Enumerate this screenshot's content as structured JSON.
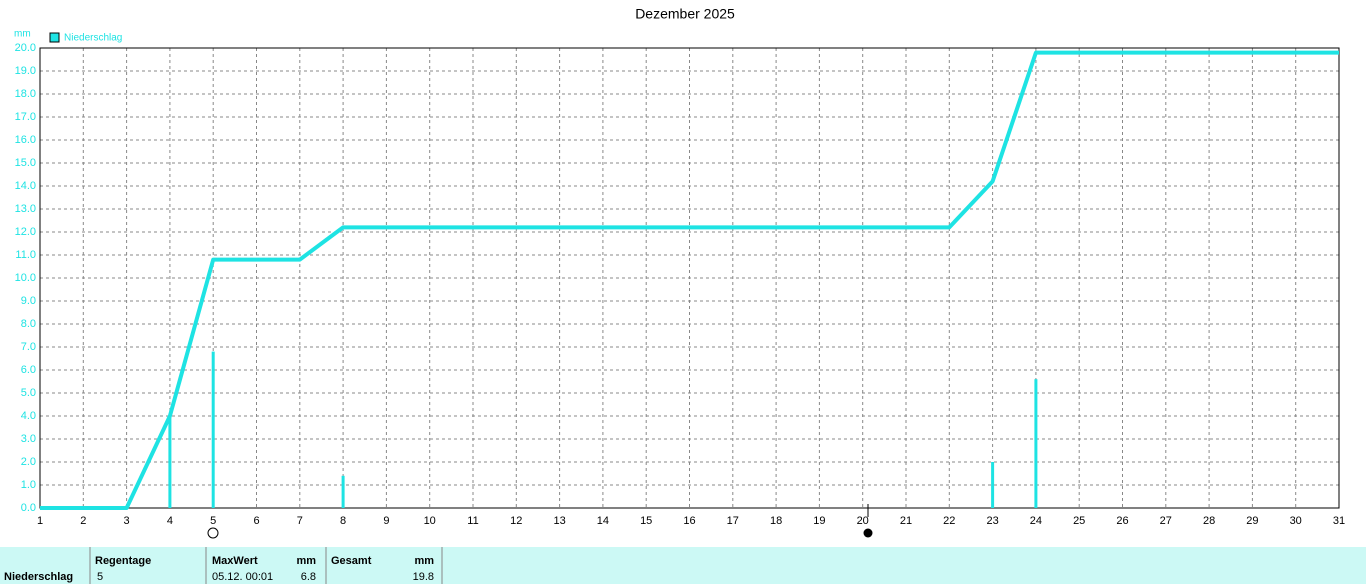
{
  "chart_data": {
    "type": "line",
    "title": "Dezember 2025",
    "y_label": "mm",
    "x": [
      1,
      3,
      4,
      5,
      7,
      8,
      22,
      23,
      24,
      31
    ],
    "series": [
      {
        "name": "Niederschlag",
        "color": "#1ee3e3",
        "values": [
          0,
          0,
          4.0,
          10.8,
          10.8,
          12.2,
          12.2,
          14.2,
          19.8,
          19.8
        ]
      }
    ],
    "bars": {
      "x": [
        4,
        5,
        8,
        23,
        24
      ],
      "values": [
        4.0,
        6.8,
        1.4,
        2.0,
        5.6
      ]
    },
    "xlim": [
      1,
      31
    ],
    "xticks": [
      1,
      2,
      3,
      4,
      5,
      6,
      7,
      8,
      9,
      10,
      11,
      12,
      13,
      14,
      15,
      16,
      17,
      18,
      19,
      20,
      21,
      22,
      23,
      24,
      25,
      26,
      27,
      28,
      29,
      30,
      31
    ],
    "ylim": [
      0,
      20
    ],
    "yticks": [
      {
        "value": 0,
        "label": "0.0"
      },
      {
        "value": 1,
        "label": "1.0"
      },
      {
        "value": 2,
        "label": "2.0"
      },
      {
        "value": 3,
        "label": "3.0"
      },
      {
        "value": 4,
        "label": "4.0"
      },
      {
        "value": 5,
        "label": "5.0"
      },
      {
        "value": 6,
        "label": "6.0"
      },
      {
        "value": 7,
        "label": "7.0"
      },
      {
        "value": 8,
        "label": "8.0"
      },
      {
        "value": 9,
        "label": "9.0"
      },
      {
        "value": 10,
        "label": "10.0"
      },
      {
        "value": 11,
        "label": "11.0"
      },
      {
        "value": 12,
        "label": "12.0"
      },
      {
        "value": 13,
        "label": "13.0"
      },
      {
        "value": 14,
        "label": "14.0"
      },
      {
        "value": 15,
        "label": "15.0"
      },
      {
        "value": 16,
        "label": "16.0"
      },
      {
        "value": 17,
        "label": "17.0"
      },
      {
        "value": 18,
        "label": "18.0"
      },
      {
        "value": 19,
        "label": "19.0"
      },
      {
        "value": 20,
        "label": "20.0"
      }
    ],
    "grid": true
  },
  "table": {
    "row_label": "Niederschlag",
    "regentage": {
      "header": "Regentage",
      "value": 5
    },
    "maxwert": {
      "header": "MaxWert",
      "unit": "mm",
      "date": "05.12. 00:01",
      "value": 6.8
    },
    "gesamt": {
      "header": "Gesamt",
      "unit": "mm",
      "value": 19.8
    }
  }
}
